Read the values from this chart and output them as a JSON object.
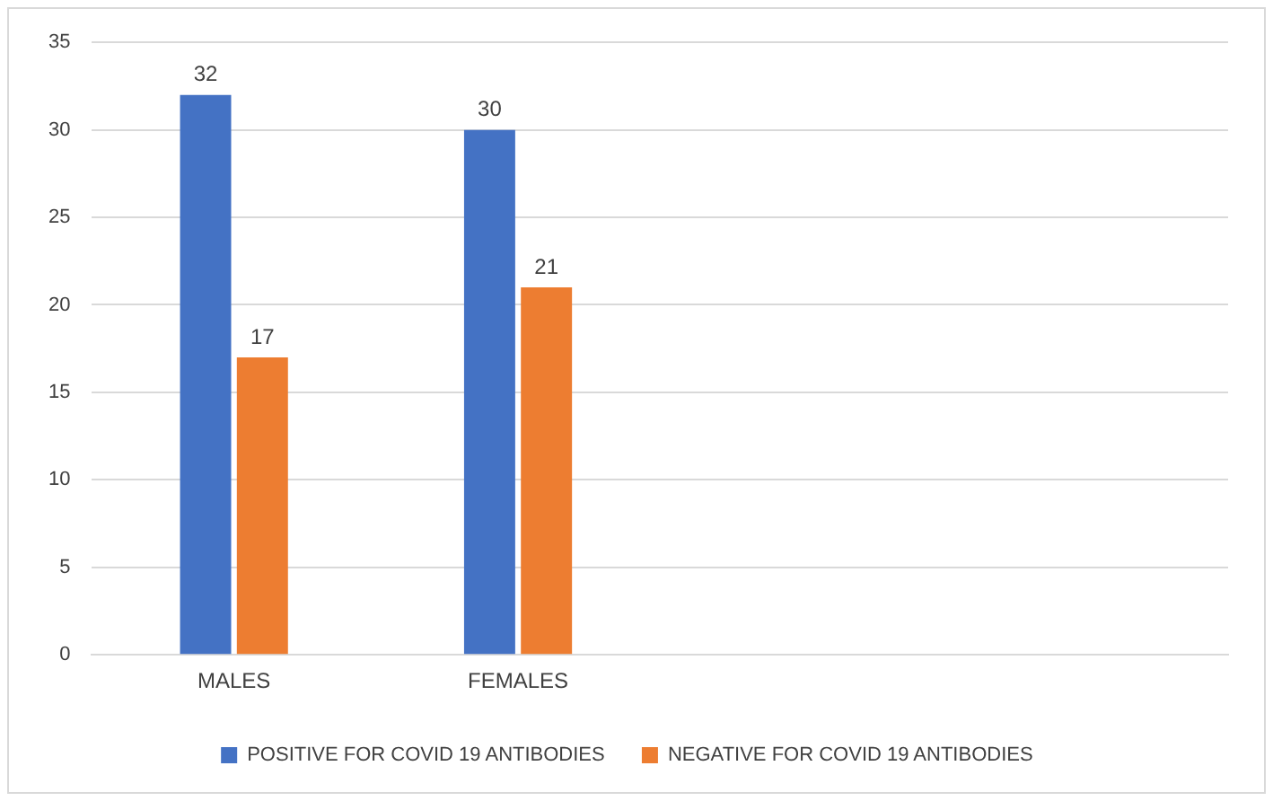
{
  "chart_data": {
    "type": "bar",
    "categories": [
      "MALES",
      "FEMALES",
      null,
      null
    ],
    "series": [
      {
        "name": "POSITIVE FOR COVID 19 ANTIBODIES",
        "color": "#4472c4",
        "values": [
          32,
          30,
          null,
          null
        ]
      },
      {
        "name": "NEGATIVE FOR COVID 19 ANTIBODIES",
        "color": "#ed7d31",
        "values": [
          17,
          21,
          null,
          null
        ]
      }
    ],
    "ylim": [
      0,
      35
    ],
    "yticks": [
      0,
      5,
      10,
      15,
      20,
      25,
      30,
      35
    ],
    "grid": "y",
    "legend": "bottom",
    "data_labels": true
  }
}
